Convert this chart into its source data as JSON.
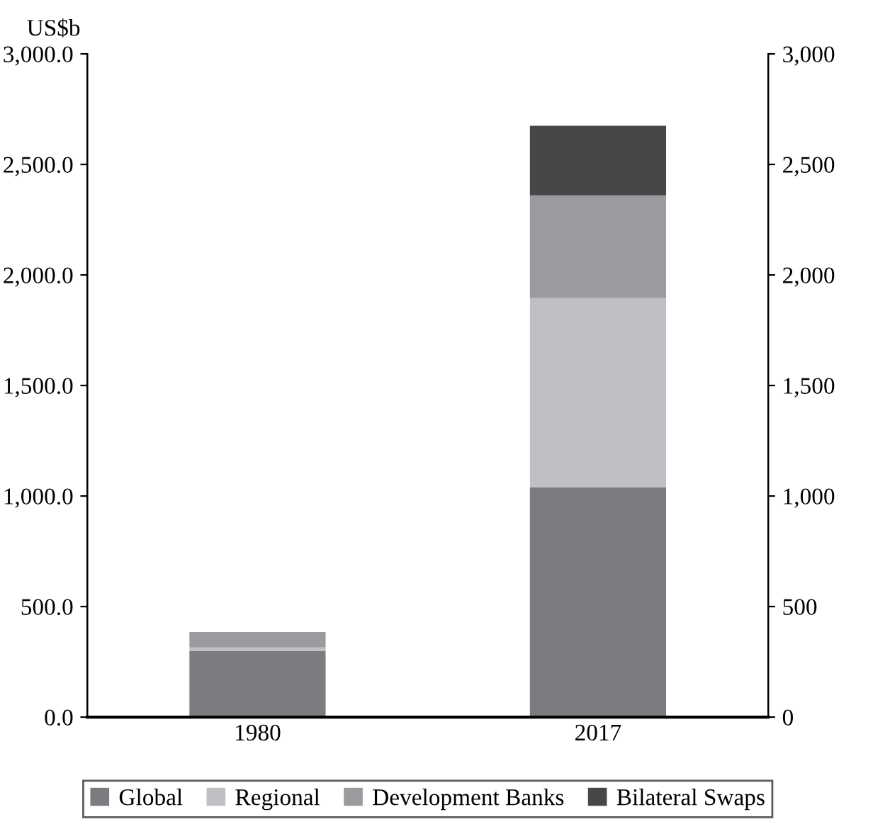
{
  "chart_data": {
    "type": "bar",
    "stacked": true,
    "ylabel": "US$b",
    "categories": [
      "1980",
      "2017"
    ],
    "series": [
      {
        "name": "Global",
        "color": "#7b7c80",
        "values": [
          300,
          1040
        ]
      },
      {
        "name": "Regional",
        "color": "#bfc0c4",
        "values": [
          15,
          855
        ]
      },
      {
        "name": "Development Banks",
        "color": "#9a9b9f",
        "values": [
          70,
          465
        ]
      },
      {
        "name": "Bilateral Swaps",
        "color": "#464749",
        "values": [
          0,
          315
        ]
      }
    ],
    "ylim": [
      0,
      3000
    ],
    "yticks": [
      {
        "value": 0,
        "label": "0.0"
      },
      {
        "value": 500,
        "label": "500.0"
      },
      {
        "value": 1000,
        "label": "1,000.0"
      },
      {
        "value": 1500,
        "label": "1,500.0"
      },
      {
        "value": 2000,
        "label": "2,000.0"
      },
      {
        "value": 2500,
        "label": "2,500.0"
      },
      {
        "value": 3000,
        "label": "3,000.0"
      }
    ],
    "y2lim": [
      0,
      3000
    ],
    "y2ticks": [
      0,
      500,
      {
        "value": 1000,
        "label": "1,000"
      },
      {
        "value": 1500,
        "label": "1,500"
      },
      {
        "value": 2000,
        "label": "2,000"
      },
      {
        "value": 2500,
        "label": "2,500"
      },
      {
        "value": 3000,
        "label": "3,000"
      }
    ],
    "grid": false,
    "legend": "bottom"
  }
}
